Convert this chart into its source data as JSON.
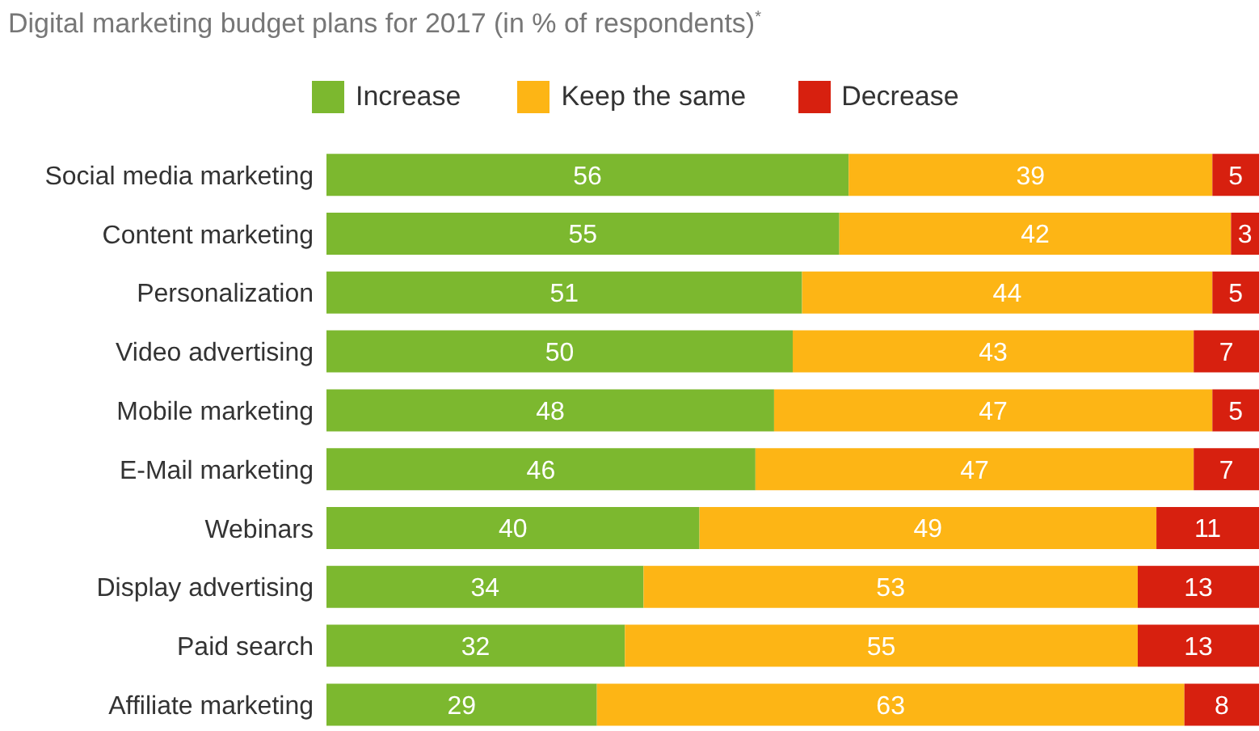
{
  "chart_data": {
    "type": "bar",
    "orientation": "horizontal",
    "stacked": true,
    "title": "Digital marketing budget plans for 2017 (in % of respondents)$^{*}$",
    "categories": [
      "Social media marketing",
      "Content marketing",
      "Personalization",
      "Video advertising",
      "Mobile marketing",
      "E-Mail marketing",
      "Webinars",
      "Display advertising",
      "Paid search",
      "Affiliate marketing"
    ],
    "series": [
      {
        "name": "Increase",
        "color": "#7cb82f",
        "values": [
          56,
          55,
          51,
          50,
          48,
          46,
          40,
          34,
          32,
          29
        ]
      },
      {
        "name": "Keep the same",
        "color": "#fdb515",
        "values": [
          39,
          42,
          44,
          43,
          47,
          47,
          49,
          53,
          55,
          63
        ]
      },
      {
        "name": "Decrease",
        "color": "#d7200f",
        "values": [
          5,
          3,
          5,
          7,
          5,
          7,
          11,
          13,
          13,
          8
        ]
      }
    ],
    "xlim": [
      0,
      100
    ],
    "data_labels": true,
    "legend": "top",
    "grid": false
  }
}
